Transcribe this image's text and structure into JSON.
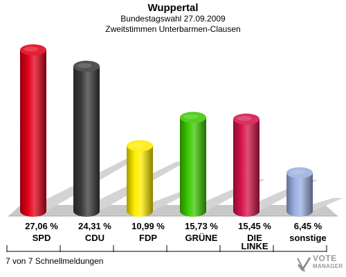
{
  "header": {
    "title": "Wuppertal",
    "line1": "Bundestagswahl 27.09.2009",
    "line2": "Zweitstimmen Unterbarmen-Clausen"
  },
  "footer": {
    "reporting": "7 von 7 Schnellmeldungen"
  },
  "logo": {
    "line1": "VOTE",
    "line2": "MANAGER"
  },
  "chart_data": {
    "type": "bar",
    "title": "Wuppertal",
    "subtitle": "Bundestagswahl 27.09.2009 · Zweitstimmen Unterbarmen-Clausen",
    "categories": [
      "SPD",
      "CDU",
      "FDP",
      "GRÜNE",
      "DIE LINKE",
      "sonstige"
    ],
    "category_lines": [
      [
        "SPD"
      ],
      [
        "CDU"
      ],
      [
        "FDP"
      ],
      [
        "GRÜNE"
      ],
      [
        "DIE",
        "LINKE"
      ],
      [
        "sonstige"
      ]
    ],
    "values": [
      27.06,
      24.31,
      10.99,
      15.73,
      15.45,
      6.45
    ],
    "value_labels": [
      "27,06 %",
      "24,31 %",
      "10,99 %",
      "15,73 %",
      "15,45 %",
      "6,45 %"
    ],
    "colors": [
      "#e2001a",
      "#3a3a3a",
      "#ffed00",
      "#3cc800",
      "#d4144a",
      "#9aaee0"
    ],
    "ylim": [
      0,
      27.06
    ],
    "grid": false,
    "legend": "none"
  }
}
